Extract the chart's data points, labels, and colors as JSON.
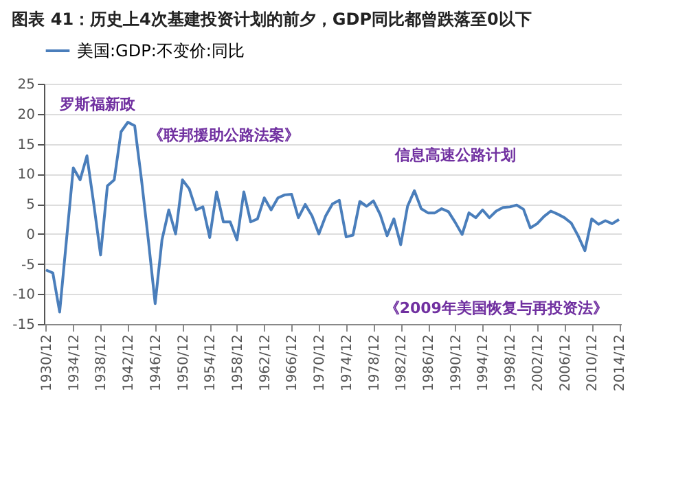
{
  "chart_data": {
    "type": "line",
    "title": "图表 41：历史上4次基建投资计划的前夕，GDP同比都曾跌落至0以下",
    "categories": [
      "1930/12",
      null,
      null,
      null,
      "1934/12",
      null,
      null,
      null,
      "1938/12",
      null,
      null,
      null,
      "1942/12",
      null,
      null,
      null,
      "1946/12",
      null,
      null,
      null,
      "1950/12",
      null,
      null,
      null,
      "1954/12",
      null,
      null,
      null,
      "1958/12",
      null,
      null,
      null,
      "1962/12",
      null,
      null,
      null,
      "1966/12",
      null,
      null,
      null,
      "1970/12",
      null,
      null,
      null,
      "1974/12",
      null,
      null,
      null,
      "1978/12",
      null,
      null,
      null,
      "1982/12",
      null,
      null,
      null,
      "1986/12",
      null,
      null,
      null,
      "1990/12",
      null,
      null,
      null,
      "1994/12",
      null,
      null,
      null,
      "1998/12",
      null,
      null,
      null,
      "2002/12",
      null,
      null,
      null,
      "2006/12",
      null,
      null,
      null,
      "2010/12",
      null,
      null,
      null,
      "2014/12"
    ],
    "series": [
      {
        "name": "美国:GDP:不变价:同比",
        "color": "#4a7ebb",
        "values": [
          -6,
          -6.5,
          -13,
          -1,
          11,
          9,
          13,
          5,
          -3.5,
          8,
          9,
          17,
          18.6,
          18,
          9,
          -1,
          -11.6,
          -1,
          4,
          0,
          9,
          7.5,
          4,
          4.5,
          -0.6,
          7,
          2,
          2,
          -1,
          7,
          2,
          2.5,
          6,
          4,
          6,
          6.5,
          6.6,
          2.7,
          4.9,
          3,
          0,
          3,
          5,
          5.6,
          -0.5,
          -0.2,
          5.4,
          4.6,
          5.5,
          3.2,
          -0.3,
          2.5,
          -1.8,
          4.6,
          7.2,
          4.2,
          3.5,
          3.5,
          4.2,
          3.7,
          1.9,
          -0.1,
          3.5,
          2.7,
          4,
          2.7,
          3.8,
          4.4,
          4.5,
          4.8,
          4.1,
          1,
          1.7,
          2.9,
          3.8,
          3.3,
          2.7,
          1.8,
          -0.3,
          -2.8,
          2.5,
          1.6,
          2.2,
          1.7,
          2.4
        ]
      }
    ],
    "ylim": [
      -15,
      25
    ],
    "yticks": [
      -15,
      -10,
      -5,
      0,
      5,
      10,
      15,
      20,
      25
    ],
    "grid": "y",
    "legend": "top",
    "annotations": [
      "罗斯福新政",
      "《联邦援助公路法案》",
      "信息高速公路计划",
      "《2009年美国恢复与再投资法》"
    ]
  }
}
